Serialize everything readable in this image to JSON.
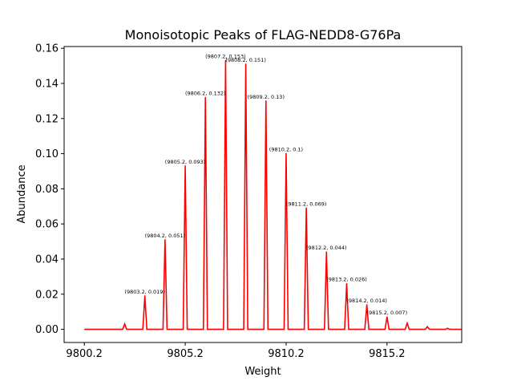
{
  "chart_data": {
    "type": "line",
    "title": "Monoisotopic Peaks of FLAG-NEDD8-G76Pa",
    "xlabel": "Weight",
    "ylabel": "Abundance",
    "xlim": [
      9799.2,
      9818.9
    ],
    "ylim": [
      -0.0075,
      0.161
    ],
    "grid": false,
    "color": "#ff0000",
    "x_ticks": [
      {
        "value": 9800.2,
        "label": "9800.2"
      },
      {
        "value": 9805.2,
        "label": "9805.2"
      },
      {
        "value": 9810.2,
        "label": "9810.2"
      },
      {
        "value": 9815.2,
        "label": "9815.2"
      }
    ],
    "y_ticks": [
      {
        "value": 0.0,
        "label": "0.00"
      },
      {
        "value": 0.02,
        "label": "0.02"
      },
      {
        "value": 0.04,
        "label": "0.04"
      },
      {
        "value": 0.06,
        "label": "0.06"
      },
      {
        "value": 0.08,
        "label": "0.08"
      },
      {
        "value": 0.1,
        "label": "0.10"
      },
      {
        "value": 0.12,
        "label": "0.12"
      },
      {
        "value": 0.14,
        "label": "0.14"
      },
      {
        "value": 0.16,
        "label": "0.16"
      }
    ],
    "baseline_x_range": [
      9800.2,
      9818.9
    ],
    "peaks": [
      {
        "x": 9802.2,
        "y": 0.003,
        "label": ""
      },
      {
        "x": 9803.2,
        "y": 0.019,
        "label": "(9803.2, 0.019)"
      },
      {
        "x": 9804.2,
        "y": 0.051,
        "label": "(9804.2, 0.051)"
      },
      {
        "x": 9805.2,
        "y": 0.093,
        "label": "(9805.2, 0.093)"
      },
      {
        "x": 9806.2,
        "y": 0.132,
        "label": "(9806.2, 0.132)"
      },
      {
        "x": 9807.2,
        "y": 0.153,
        "label": "(9807.2, 0.153)"
      },
      {
        "x": 9808.2,
        "y": 0.151,
        "label": "(9808.2, 0.151)"
      },
      {
        "x": 9809.2,
        "y": 0.13,
        "label": "(9809.2, 0.13)"
      },
      {
        "x": 9810.2,
        "y": 0.1,
        "label": "(9810.2, 0.1)"
      },
      {
        "x": 9811.2,
        "y": 0.069,
        "label": "(9811.2, 0.069)"
      },
      {
        "x": 9812.2,
        "y": 0.044,
        "label": "(9812.2, 0.044)"
      },
      {
        "x": 9813.2,
        "y": 0.026,
        "label": "(9813.2, 0.026)"
      },
      {
        "x": 9814.2,
        "y": 0.014,
        "label": "(9814.2, 0.014)"
      },
      {
        "x": 9815.2,
        "y": 0.007,
        "label": "(9815.2, 0.007)"
      },
      {
        "x": 9816.2,
        "y": 0.0035,
        "label": ""
      },
      {
        "x": 9817.2,
        "y": 0.0015,
        "label": ""
      },
      {
        "x": 9818.2,
        "y": 0.0006,
        "label": ""
      }
    ]
  }
}
